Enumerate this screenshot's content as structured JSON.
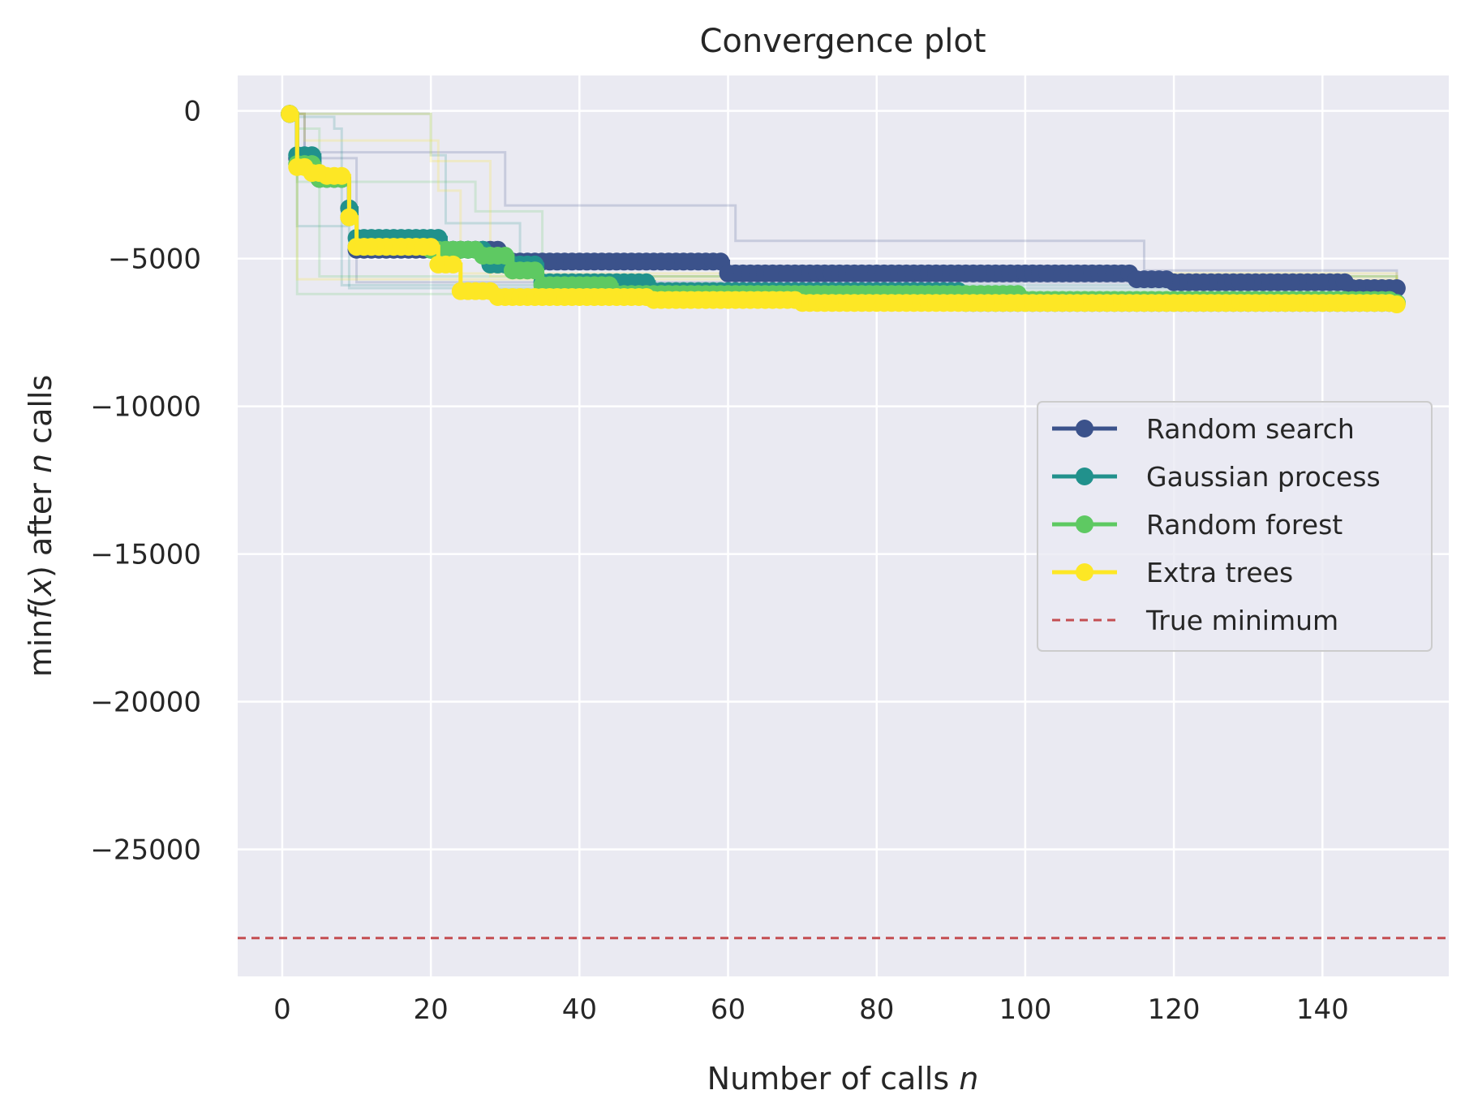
{
  "chart_data": {
    "type": "line",
    "title": "Convergence plot",
    "xlabel_parts": [
      "Number of calls ",
      "n"
    ],
    "ylabel_parts": [
      "min",
      "f",
      "(",
      "x",
      ") after ",
      "n",
      " calls"
    ],
    "xlim": [
      -6,
      157
    ],
    "ylim": [
      -29300,
      1200
    ],
    "x_ticks": [
      0,
      20,
      40,
      60,
      80,
      100,
      120,
      140
    ],
    "y_ticks": [
      0,
      -5000,
      -10000,
      -15000,
      -20000,
      -25000
    ],
    "y_tick_labels": [
      "0",
      "−5000",
      "−10000",
      "−15000",
      "−20000",
      "−25000"
    ],
    "grid": true,
    "background": "#eaeaf2",
    "legend_position": "center-right",
    "series": [
      {
        "name": "Random search",
        "color": "#3b528b",
        "steps": [
          [
            1,
            -100
          ],
          [
            2,
            -1600
          ],
          [
            5,
            -2300
          ],
          [
            9,
            -3300
          ],
          [
            10,
            -4700
          ],
          [
            30,
            -5100
          ],
          [
            60,
            -5500
          ],
          [
            115,
            -5700
          ],
          [
            120,
            -5800
          ],
          [
            144,
            -6000
          ],
          [
            150,
            -6000
          ]
        ]
      },
      {
        "name": "Gaussian process",
        "color": "#21918c",
        "steps": [
          [
            1,
            -100
          ],
          [
            2,
            -1500
          ],
          [
            5,
            -2300
          ],
          [
            9,
            -3300
          ],
          [
            10,
            -4300
          ],
          [
            22,
            -4700
          ],
          [
            28,
            -5200
          ],
          [
            35,
            -5800
          ],
          [
            50,
            -6100
          ],
          [
            92,
            -6500
          ],
          [
            150,
            -6500
          ]
        ]
      },
      {
        "name": "Random forest",
        "color": "#5ec962",
        "steps": [
          [
            1,
            -100
          ],
          [
            2,
            -1800
          ],
          [
            5,
            -2300
          ],
          [
            9,
            -3600
          ],
          [
            10,
            -4600
          ],
          [
            20,
            -4700
          ],
          [
            27,
            -4900
          ],
          [
            31,
            -5400
          ],
          [
            35,
            -5900
          ],
          [
            45,
            -6200
          ],
          [
            100,
            -6400
          ],
          [
            150,
            -6500
          ]
        ]
      },
      {
        "name": "Extra trees",
        "color": "#fde725",
        "steps": [
          [
            1,
            -100
          ],
          [
            2,
            -1900
          ],
          [
            4,
            -2100
          ],
          [
            6,
            -2200
          ],
          [
            9,
            -3600
          ],
          [
            10,
            -4600
          ],
          [
            21,
            -5200
          ],
          [
            24,
            -6100
          ],
          [
            29,
            -6300
          ],
          [
            50,
            -6400
          ],
          [
            70,
            -6500
          ],
          [
            150,
            -6550
          ]
        ]
      }
    ],
    "true_minimum": {
      "name": "True minimum",
      "value": -28000,
      "color": "#c44e52"
    },
    "faint_runs": [
      {
        "color": "#3b528b",
        "steps": [
          [
            1,
            -100
          ],
          [
            3,
            -1400
          ],
          [
            29,
            -1400
          ],
          [
            30,
            -3200
          ],
          [
            60,
            -3200
          ],
          [
            61,
            -4400
          ],
          [
            114,
            -4400
          ],
          [
            116,
            -5400
          ],
          [
            150,
            -5700
          ]
        ]
      },
      {
        "color": "#3b528b",
        "steps": [
          [
            1,
            -100
          ],
          [
            3,
            -1600
          ],
          [
            10,
            -5800
          ],
          [
            150,
            -6000
          ]
        ]
      },
      {
        "color": "#21918c",
        "steps": [
          [
            1,
            -100
          ],
          [
            2,
            -3900
          ],
          [
            8,
            -3900
          ],
          [
            9,
            -6000
          ],
          [
            150,
            -6300
          ]
        ]
      },
      {
        "color": "#21918c",
        "steps": [
          [
            1,
            -200
          ],
          [
            7,
            -600
          ],
          [
            8,
            -5900
          ],
          [
            150,
            -6200
          ]
        ]
      },
      {
        "color": "#21918c",
        "steps": [
          [
            1,
            -100
          ],
          [
            20,
            -1500
          ],
          [
            22,
            -3800
          ],
          [
            31,
            -3800
          ],
          [
            32,
            -5600
          ],
          [
            150,
            -6000
          ]
        ]
      },
      {
        "color": "#5ec962",
        "steps": [
          [
            1,
            -100
          ],
          [
            2,
            -6200
          ],
          [
            150,
            -6300
          ]
        ]
      },
      {
        "color": "#5ec962",
        "steps": [
          [
            1,
            -100
          ],
          [
            2,
            -2400
          ],
          [
            26,
            -3400
          ],
          [
            34,
            -3400
          ],
          [
            35,
            -6100
          ],
          [
            150,
            -6400
          ]
        ]
      },
      {
        "color": "#5ec962",
        "steps": [
          [
            1,
            -100
          ],
          [
            2,
            -600
          ],
          [
            4,
            -600
          ],
          [
            5,
            -5600
          ],
          [
            150,
            -6000
          ]
        ]
      },
      {
        "color": "#fde725",
        "steps": [
          [
            1,
            -100
          ],
          [
            3,
            -1000
          ],
          [
            20,
            -1000
          ],
          [
            21,
            -2700
          ],
          [
            23,
            -2700
          ],
          [
            24,
            -5500
          ],
          [
            150,
            -5800
          ]
        ]
      },
      {
        "color": "#fde725",
        "steps": [
          [
            1,
            -100
          ],
          [
            2,
            -5700
          ],
          [
            150,
            -5900
          ]
        ]
      },
      {
        "color": "#fde725",
        "steps": [
          [
            1,
            -100
          ],
          [
            20,
            -1700
          ],
          [
            27,
            -1700
          ],
          [
            28,
            -5600
          ],
          [
            150,
            -6000
          ]
        ]
      }
    ]
  }
}
